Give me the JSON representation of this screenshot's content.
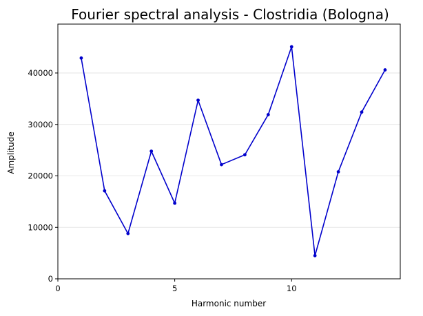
{
  "chart_data": {
    "type": "line",
    "title": "Fourier spectral analysis - Clostridia (Bologna)",
    "xlabel": "Harmonic number",
    "ylabel": "Amplitude",
    "xlim": [
      0,
      14.65
    ],
    "ylim": [
      0,
      49500
    ],
    "xticks": [
      0,
      5,
      10
    ],
    "yticks": [
      0,
      10000,
      20000,
      30000,
      40000
    ],
    "grid": "y-only",
    "colors": {
      "line": "#0000cc",
      "grid": "#e6e6e6",
      "axes": "#000000"
    },
    "series": [
      {
        "x": [
          1,
          2,
          3,
          4,
          5,
          6,
          7,
          8,
          9,
          10,
          11,
          12,
          13,
          14
        ],
        "values": [
          42900,
          17100,
          8800,
          24800,
          14700,
          34700,
          22200,
          24100,
          31900,
          45100,
          4500,
          20800,
          32400,
          40600
        ]
      }
    ]
  }
}
